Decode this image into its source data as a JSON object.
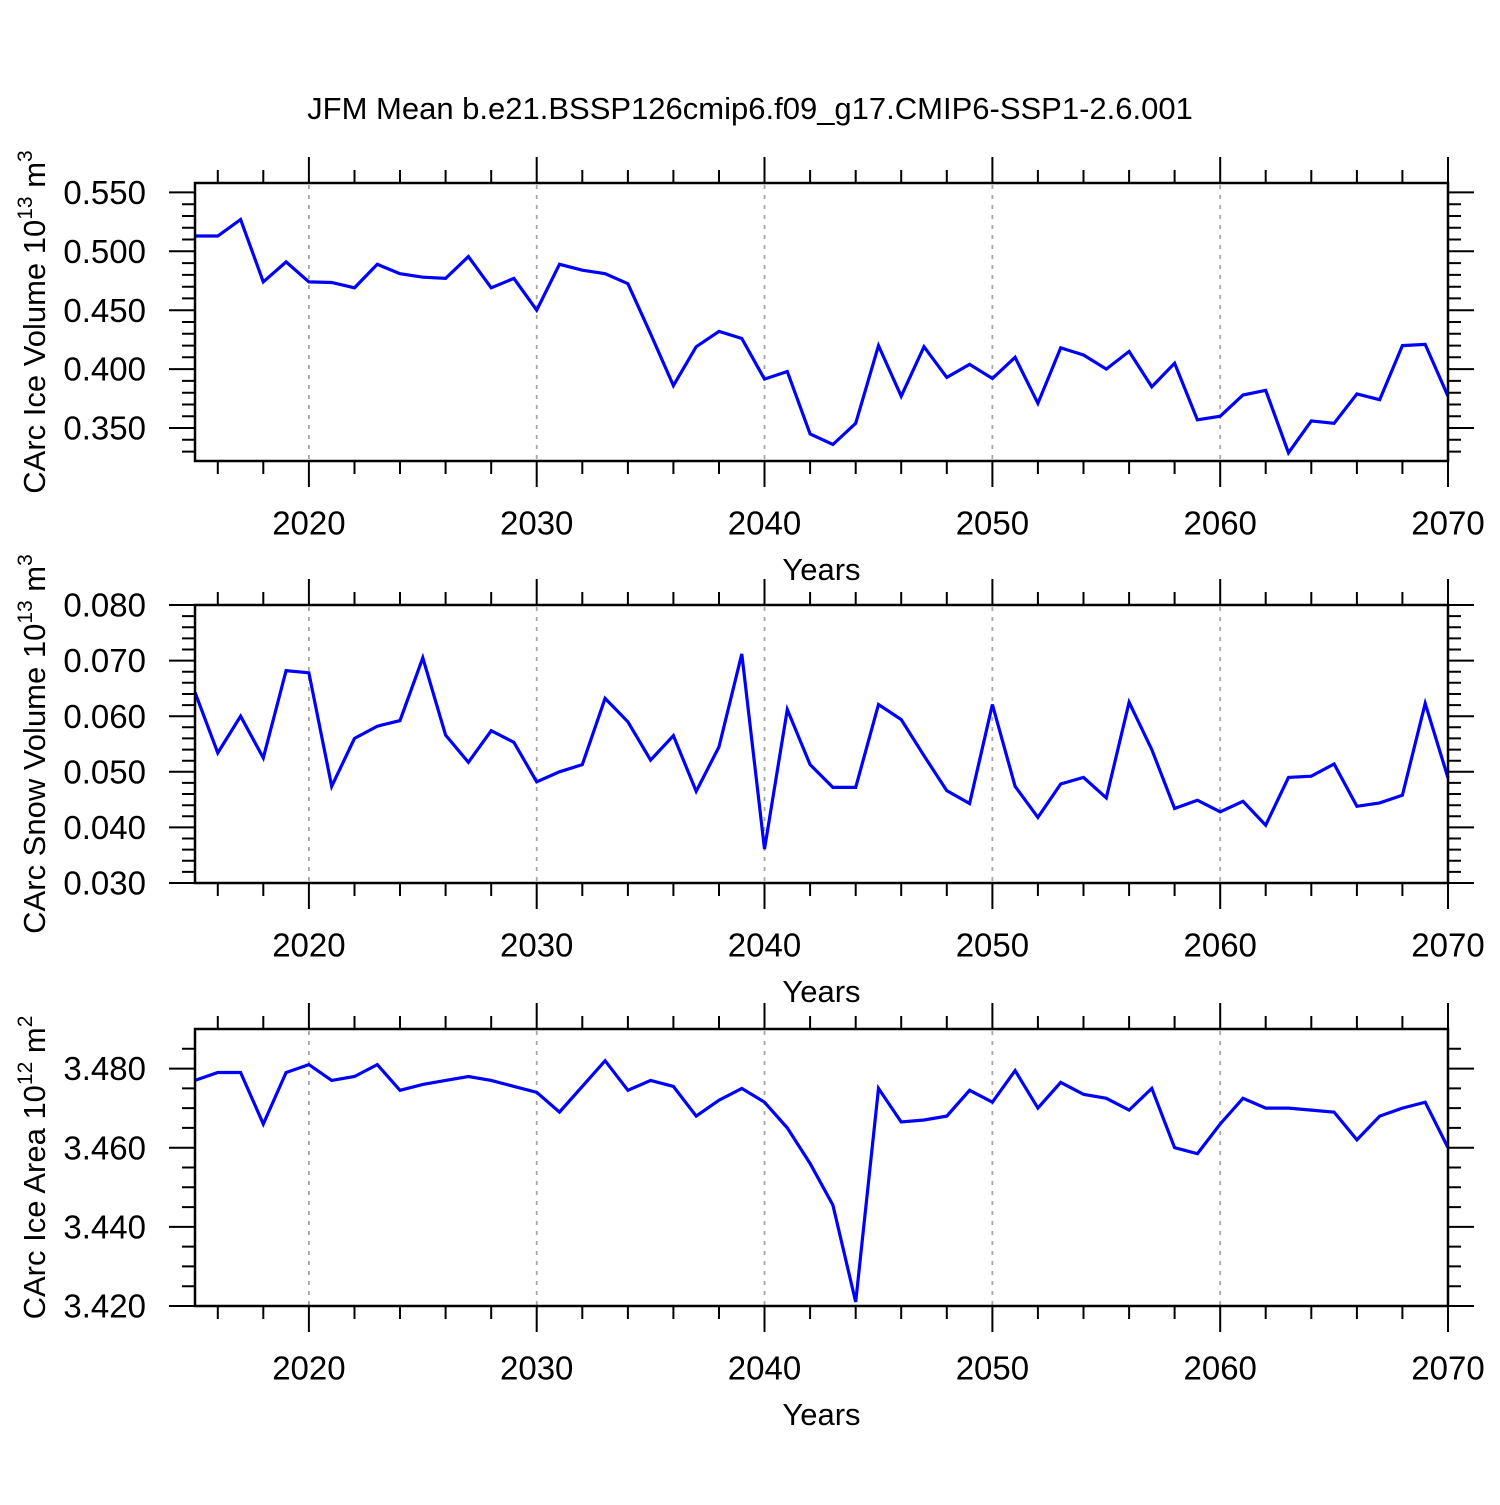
{
  "figure": {
    "title": "JFM Mean b.e21.BSSP126cmip6.f09_g17.CMIP6-SSP1-2.6.001",
    "background": "#ffffff",
    "line_color": "#0000ff",
    "grid_color": "#a6a6a6",
    "frame_color": "#000000",
    "text_color": "#000000"
  },
  "years": [
    2015,
    2016,
    2017,
    2018,
    2019,
    2020,
    2021,
    2022,
    2023,
    2024,
    2025,
    2026,
    2027,
    2028,
    2029,
    2030,
    2031,
    2032,
    2033,
    2034,
    2035,
    2036,
    2037,
    2038,
    2039,
    2040,
    2041,
    2042,
    2043,
    2044,
    2045,
    2046,
    2047,
    2048,
    2049,
    2050,
    2051,
    2052,
    2053,
    2054,
    2055,
    2056,
    2057,
    2058,
    2059,
    2060,
    2061,
    2062,
    2063,
    2064,
    2065,
    2066,
    2067,
    2068,
    2069,
    2070
  ],
  "chart_data": [
    {
      "id": "ice-volume",
      "type": "line",
      "title": "",
      "xlabel": "Years",
      "ylabel": "CArc Ice Volume 10^13 m^3",
      "ylabel_parts": [
        {
          "t": "CArc Ice Volume 10"
        },
        {
          "t": "13",
          "sup": true
        },
        {
          "t": " m"
        },
        {
          "t": "3",
          "sup": true
        }
      ],
      "x_axis": {
        "min": 2015,
        "max": 2070,
        "major_start": 2020,
        "major_step": 10,
        "major_end": 2070,
        "minor_start": 2016,
        "minor_step": 2,
        "tick_labels": [
          "2020",
          "2030",
          "2040",
          "2050",
          "2060",
          "2070"
        ],
        "grid_years": [
          2020,
          2030,
          2040,
          2050,
          2060
        ]
      },
      "y_axis": {
        "min": 0.322,
        "max": 0.558,
        "major_start": 0.35,
        "major_step": 0.05,
        "major_end": 0.55,
        "minor_step": 0.01,
        "tick_labels": [
          "0.350",
          "0.400",
          "0.450",
          "0.500",
          "0.550"
        ]
      },
      "legend": "none",
      "grid": "vertical-dashed",
      "values": [
        0.513,
        0.513,
        0.527,
        0.474,
        0.491,
        0.474,
        0.4735,
        0.469,
        0.489,
        0.481,
        0.478,
        0.477,
        0.4955,
        0.469,
        0.477,
        0.45,
        0.489,
        0.484,
        0.481,
        0.4725,
        0.43,
        0.386,
        0.419,
        0.432,
        0.426,
        0.3915,
        0.398,
        0.345,
        0.336,
        0.354,
        0.42,
        0.377,
        0.419,
        0.393,
        0.404,
        0.392,
        0.41,
        0.371,
        0.418,
        0.412,
        0.4,
        0.415,
        0.385,
        0.405,
        0.357,
        0.36,
        0.378,
        0.382,
        0.329,
        0.356,
        0.354,
        0.379,
        0.374,
        0.42,
        0.421,
        0.377
      ]
    },
    {
      "id": "snow-volume",
      "type": "line",
      "title": "",
      "xlabel": "Years",
      "ylabel": "CArc Snow Volume 10^13 m^3",
      "ylabel_parts": [
        {
          "t": "CArc Snow Volume 10"
        },
        {
          "t": "13",
          "sup": true
        },
        {
          "t": " m"
        },
        {
          "t": "3",
          "sup": true
        }
      ],
      "x_axis": {
        "min": 2015,
        "max": 2070,
        "major_start": 2020,
        "major_step": 10,
        "major_end": 2070,
        "minor_start": 2016,
        "minor_step": 2,
        "tick_labels": [
          "2020",
          "2030",
          "2040",
          "2050",
          "2060",
          "2070"
        ],
        "grid_years": [
          2020,
          2030,
          2040,
          2050,
          2060
        ]
      },
      "y_axis": {
        "min": 0.03,
        "max": 0.08,
        "major_start": 0.03,
        "major_step": 0.01,
        "major_end": 0.08,
        "minor_step": 0.002,
        "tick_labels": [
          "0.030",
          "0.040",
          "0.050",
          "0.060",
          "0.070",
          "0.080"
        ]
      },
      "legend": "none",
      "grid": "vertical-dashed",
      "values": [
        0.0643,
        0.0534,
        0.06,
        0.0525,
        0.0682,
        0.0678,
        0.0474,
        0.056,
        0.0582,
        0.0592,
        0.0705,
        0.0566,
        0.0517,
        0.0574,
        0.0553,
        0.0482,
        0.05,
        0.0513,
        0.0632,
        0.059,
        0.0521,
        0.0565,
        0.0465,
        0.0545,
        0.0712,
        0.0361,
        0.0612,
        0.0513,
        0.0472,
        0.0472,
        0.0621,
        0.0594,
        0.0529,
        0.0466,
        0.0443,
        0.0621,
        0.0474,
        0.0418,
        0.0478,
        0.049,
        0.0453,
        0.0625,
        0.054,
        0.0434,
        0.0449,
        0.0428,
        0.0447,
        0.0404,
        0.049,
        0.0492,
        0.0514,
        0.0438,
        0.0444,
        0.0458,
        0.0623,
        0.0489
      ]
    },
    {
      "id": "ice-area",
      "type": "line",
      "title": "",
      "xlabel": "Years",
      "ylabel": "CArc Ice Area 10^12 m^2",
      "ylabel_parts": [
        {
          "t": "CArc Ice Area 10"
        },
        {
          "t": "12",
          "sup": true
        },
        {
          "t": " m"
        },
        {
          "t": "2",
          "sup": true
        }
      ],
      "x_axis": {
        "min": 2015,
        "max": 2070,
        "major_start": 2020,
        "major_step": 10,
        "major_end": 2070,
        "minor_start": 2016,
        "minor_step": 2,
        "tick_labels": [
          "2020",
          "2030",
          "2040",
          "2050",
          "2060",
          "2070"
        ],
        "grid_years": [
          2020,
          2030,
          2040,
          2050,
          2060
        ]
      },
      "y_axis": {
        "min": 3.42,
        "max": 3.49,
        "major_start": 3.42,
        "major_step": 0.02,
        "major_end": 3.48,
        "minor_step": 0.005,
        "tick_labels": [
          "3.420",
          "3.440",
          "3.460",
          "3.480"
        ]
      },
      "legend": "none",
      "grid": "vertical-dashed",
      "values": [
        3.477,
        3.479,
        3.479,
        3.466,
        3.479,
        3.481,
        3.477,
        3.478,
        3.481,
        3.4745,
        3.476,
        3.477,
        3.478,
        3.477,
        3.4755,
        3.474,
        3.469,
        3.4755,
        3.482,
        3.4745,
        3.477,
        3.4755,
        3.468,
        3.472,
        3.475,
        3.4715,
        3.465,
        3.456,
        3.4455,
        3.421,
        3.475,
        3.4665,
        3.467,
        3.468,
        3.4745,
        3.4715,
        3.4795,
        3.47,
        3.4765,
        3.4735,
        3.4725,
        3.4695,
        3.475,
        3.46,
        3.4585,
        3.466,
        3.4725,
        3.47,
        3.47,
        3.4695,
        3.469,
        3.462,
        3.468,
        3.47,
        3.4715,
        3.46
      ]
    }
  ]
}
